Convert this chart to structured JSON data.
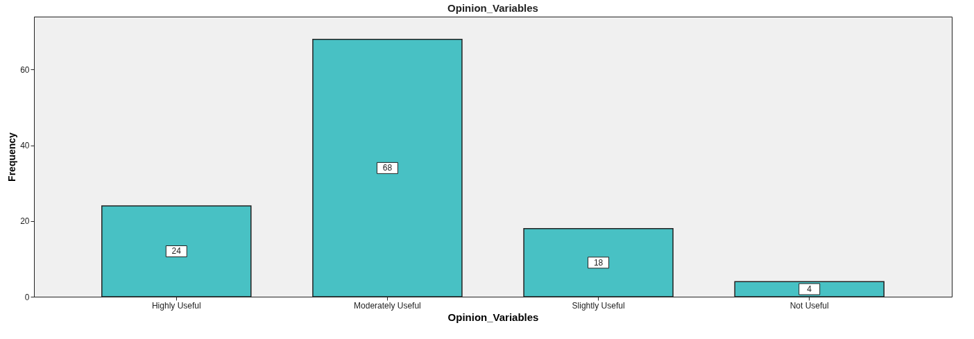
{
  "chart_data": {
    "type": "bar",
    "title": "Opinion_Variables",
    "xlabel": "Opinion_Variables",
    "ylabel": "Frequency",
    "categories": [
      "Highly Useful",
      "Moderately Useful",
      "Slightly Useful",
      "Not Useful"
    ],
    "values": [
      24,
      68,
      18,
      4
    ],
    "color": "#48c1c4",
    "ylim": [
      0,
      74
    ],
    "yticks": [
      0,
      20,
      40,
      60
    ],
    "grid": false,
    "data_labels": true
  }
}
